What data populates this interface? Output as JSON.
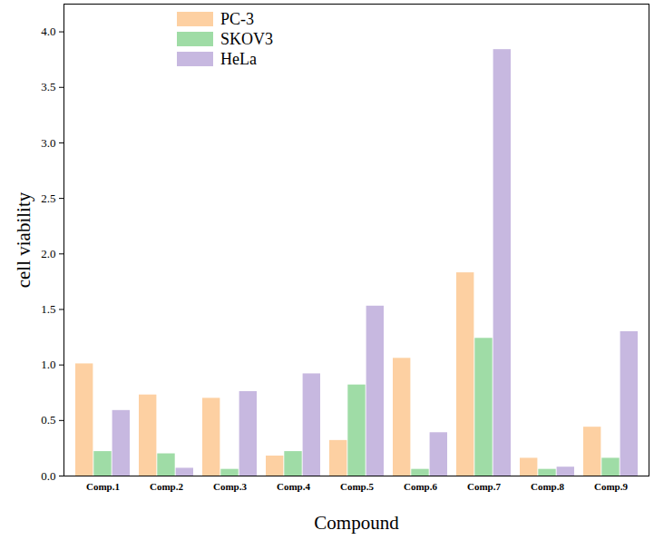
{
  "chart_data": {
    "type": "bar",
    "xlabel": "Compound",
    "ylabel": "cell viability",
    "categories": [
      "Comp.1",
      "Comp.2",
      "Comp.3",
      "Comp.4",
      "Comp.5",
      "Comp.6",
      "Comp.7",
      "Comp.8",
      "Comp.9"
    ],
    "series": [
      {
        "name": "PC-3",
        "color": "#fdd0a2",
        "values": [
          1.01,
          0.73,
          0.7,
          0.18,
          0.32,
          1.06,
          1.83,
          0.16,
          0.44
        ]
      },
      {
        "name": "SKOV3",
        "color": "#9fdca6",
        "values": [
          0.22,
          0.2,
          0.06,
          0.22,
          0.82,
          0.06,
          1.24,
          0.06,
          0.16
        ]
      },
      {
        "name": "HeLa",
        "color": "#c7b8e0",
        "values": [
          0.59,
          0.07,
          0.76,
          0.92,
          1.53,
          0.39,
          3.84,
          0.08,
          1.3
        ]
      }
    ],
    "ylim": [
      0,
      4.25
    ],
    "yticks": [
      {
        "value": 0,
        "label": "0.0"
      },
      {
        "value": 0.5,
        "label": "0.5"
      },
      {
        "value": 1,
        "label": "1.0"
      },
      {
        "value": 1.5,
        "label": "1.5"
      },
      {
        "value": 2,
        "label": "2.0"
      },
      {
        "value": 2.5,
        "label": "2.5"
      },
      {
        "value": 3,
        "label": "3.0"
      },
      {
        "value": 3.5,
        "label": "3.5"
      },
      {
        "value": 4,
        "label": "4.0"
      }
    ],
    "legend": "top-left"
  }
}
